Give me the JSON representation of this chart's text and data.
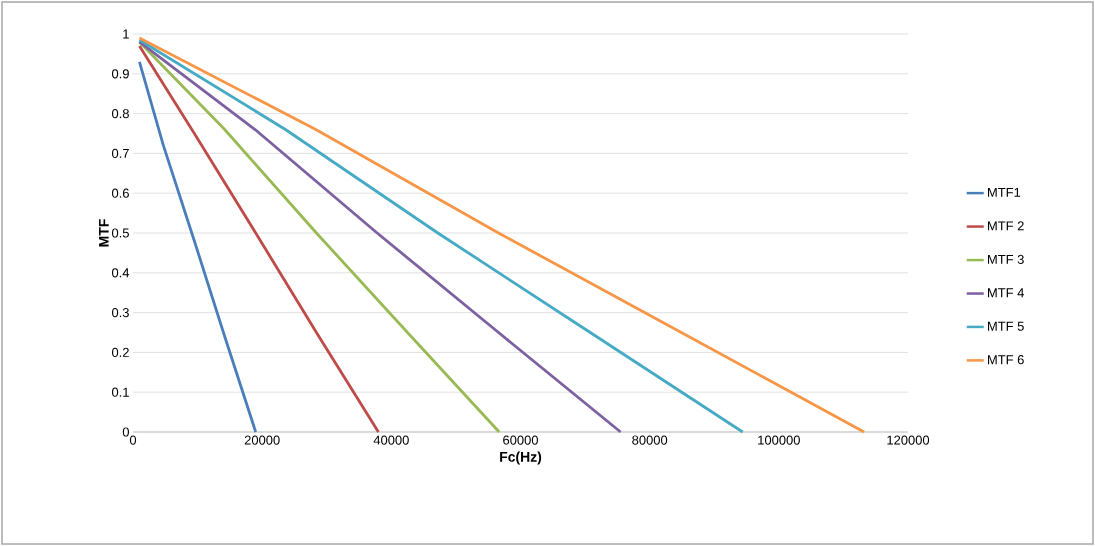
{
  "chart_data": {
    "type": "line",
    "xlabel": "Fc(Hz)",
    "ylabel": "MTF",
    "xlim": [
      0,
      120000
    ],
    "ylim": [
      0,
      1
    ],
    "xticks": [
      0,
      20000,
      40000,
      60000,
      80000,
      100000,
      120000
    ],
    "yticks": [
      0,
      0.1,
      0.2,
      0.3,
      0.4,
      0.5,
      0.6,
      0.7,
      0.8,
      0.9,
      1
    ],
    "grid": "y",
    "legend": "right",
    "marker": "none",
    "line_style": "solid",
    "series": [
      {
        "name": "MTF1",
        "color": "#4a7ebb",
        "x": [
          1000,
          4700,
          9500,
          14200,
          19000
        ],
        "values": [
          0.93,
          0.72,
          0.48,
          0.24,
          0
        ]
      },
      {
        "name": "MTF 2",
        "color": "#be4b48",
        "x": [
          1000,
          9500,
          19000,
          28400,
          38000
        ],
        "values": [
          0.97,
          0.75,
          0.5,
          0.25,
          0
        ]
      },
      {
        "name": "MTF 3",
        "color": "#98b954",
        "x": [
          1000,
          14200,
          28400,
          42500,
          56700
        ],
        "values": [
          0.98,
          0.76,
          0.5,
          0.25,
          0
        ]
      },
      {
        "name": "MTF 4",
        "color": "#7d60a0",
        "x": [
          1000,
          18900,
          37800,
          56600,
          75500
        ],
        "values": [
          0.98,
          0.76,
          0.5,
          0.25,
          0
        ]
      },
      {
        "name": "MTF 5",
        "color": "#46aac5",
        "x": [
          1000,
          23600,
          47200,
          70800,
          94400
        ],
        "values": [
          0.985,
          0.76,
          0.5,
          0.25,
          0
        ]
      },
      {
        "name": "MTF 6",
        "color": "#f79646",
        "x": [
          1000,
          28300,
          56600,
          84900,
          113200
        ],
        "values": [
          0.99,
          0.76,
          0.5,
          0.25,
          0
        ]
      }
    ]
  }
}
